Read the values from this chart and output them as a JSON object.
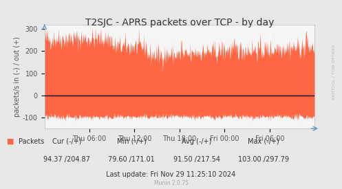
{
  "title": "T2SJC - APRS packets over TCP - by day",
  "ylabel": "packets/s in (-) / out (+)",
  "ylim": [
    -150,
    320
  ],
  "yticks": [
    -100,
    0,
    100,
    200,
    300
  ],
  "x_tick_labels": [
    "Thu 06:00",
    "Thu 12:00",
    "Thu 18:00",
    "Fri 00:00",
    "Fri 06:00"
  ],
  "x_tick_positions": [
    0.1667,
    0.3333,
    0.5,
    0.6667,
    0.8333
  ],
  "area_color": "#FF6644",
  "fill_alpha": 1.0,
  "background_color": "#e8e8e8",
  "plot_bg_color": "#f5f5f5",
  "grid_color": "#ffffff",
  "grid_dot_color": "#ddbbbb",
  "zero_line_color": "#000000",
  "title_fontsize": 10,
  "axis_fontsize": 7,
  "tick_fontsize": 7,
  "legend_label": "Packets",
  "legend_color": "#FF6644",
  "cur_label": "Cur (-/+)",
  "cur_val": "94.37 /204.87",
  "min_label": "Min (-/+)",
  "min_val": "79.60 /171.01",
  "avg_label": "Avg (-/+)",
  "avg_val": "91.50 /217.54",
  "max_label": "Max (-/+)",
  "max_val": "103.00 /297.79",
  "last_update": "Last update: Fri Nov 29 11:25:10 2024",
  "munin_version": "Munin 2.0.75",
  "watermark": "RRDTOOL / TOBI OETIKER",
  "n_points": 600
}
